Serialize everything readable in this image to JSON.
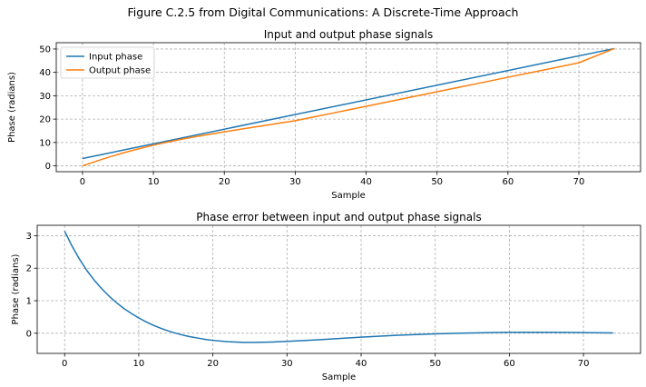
{
  "figure": {
    "suptitle": "Figure C.2.5 from Digital Communications: A Discrete-Time Approach"
  },
  "chart_data": [
    {
      "type": "line",
      "title": "Input and output phase signals",
      "xlabel": "Sample",
      "ylabel": "Phase (radians)",
      "xlim": [
        -3.7,
        78.7
      ],
      "ylim": [
        -2.5,
        52.7
      ],
      "xticks": [
        0,
        10,
        20,
        30,
        40,
        50,
        60,
        70
      ],
      "yticks": [
        0,
        10,
        20,
        30,
        40,
        50
      ],
      "grid": true,
      "legend": "top-left",
      "series": [
        {
          "name": "Input phase",
          "color": "#1f77b4",
          "x": [
            0,
            75
          ],
          "y": [
            3.14,
            50.2
          ]
        },
        {
          "name": "Output phase",
          "color": "#ff7f0e",
          "x": [
            0,
            2,
            4,
            6,
            8,
            10,
            12,
            14,
            16,
            18,
            20,
            22,
            24,
            26,
            28,
            30,
            35,
            40,
            45,
            50,
            55,
            60,
            65,
            70,
            75
          ],
          "y": [
            0.0,
            2.05,
            3.98,
            5.75,
            7.37,
            8.84,
            10.17,
            11.38,
            12.5,
            13.55,
            14.55,
            15.53,
            16.48,
            17.43,
            18.38,
            19.33,
            22.4,
            25.5,
            28.6,
            31.7,
            34.8,
            37.9,
            41.0,
            44.1,
            50.2
          ]
        }
      ]
    },
    {
      "type": "line",
      "title": "Phase error between input and output phase signals",
      "xlabel": "Sample",
      "ylabel": "Phase (radians)",
      "xlim": [
        -3.7,
        77.7
      ],
      "ylim": [
        -0.62,
        3.32
      ],
      "xticks": [
        0,
        10,
        20,
        30,
        40,
        50,
        60,
        70
      ],
      "yticks": [
        0,
        1,
        2,
        3
      ],
      "grid": true,
      "series": [
        {
          "color": "#1f77b4",
          "x": [
            0,
            1,
            2,
            3,
            4,
            5,
            6,
            7,
            8,
            9,
            10,
            11,
            12,
            13,
            14,
            15,
            16,
            17,
            18,
            19,
            20,
            22,
            24,
            26,
            28,
            30,
            32,
            35,
            38,
            40,
            45,
            50,
            55,
            60,
            65,
            70,
            74
          ],
          "y": [
            3.14,
            2.68,
            2.28,
            1.93,
            1.63,
            1.37,
            1.14,
            0.94,
            0.76,
            0.61,
            0.47,
            0.35,
            0.24,
            0.15,
            0.07,
            0.0,
            -0.06,
            -0.11,
            -0.15,
            -0.19,
            -0.22,
            -0.26,
            -0.28,
            -0.28,
            -0.27,
            -0.25,
            -0.23,
            -0.19,
            -0.15,
            -0.12,
            -0.06,
            -0.02,
            0.01,
            0.03,
            0.03,
            0.02,
            0.01
          ]
        }
      ]
    }
  ]
}
